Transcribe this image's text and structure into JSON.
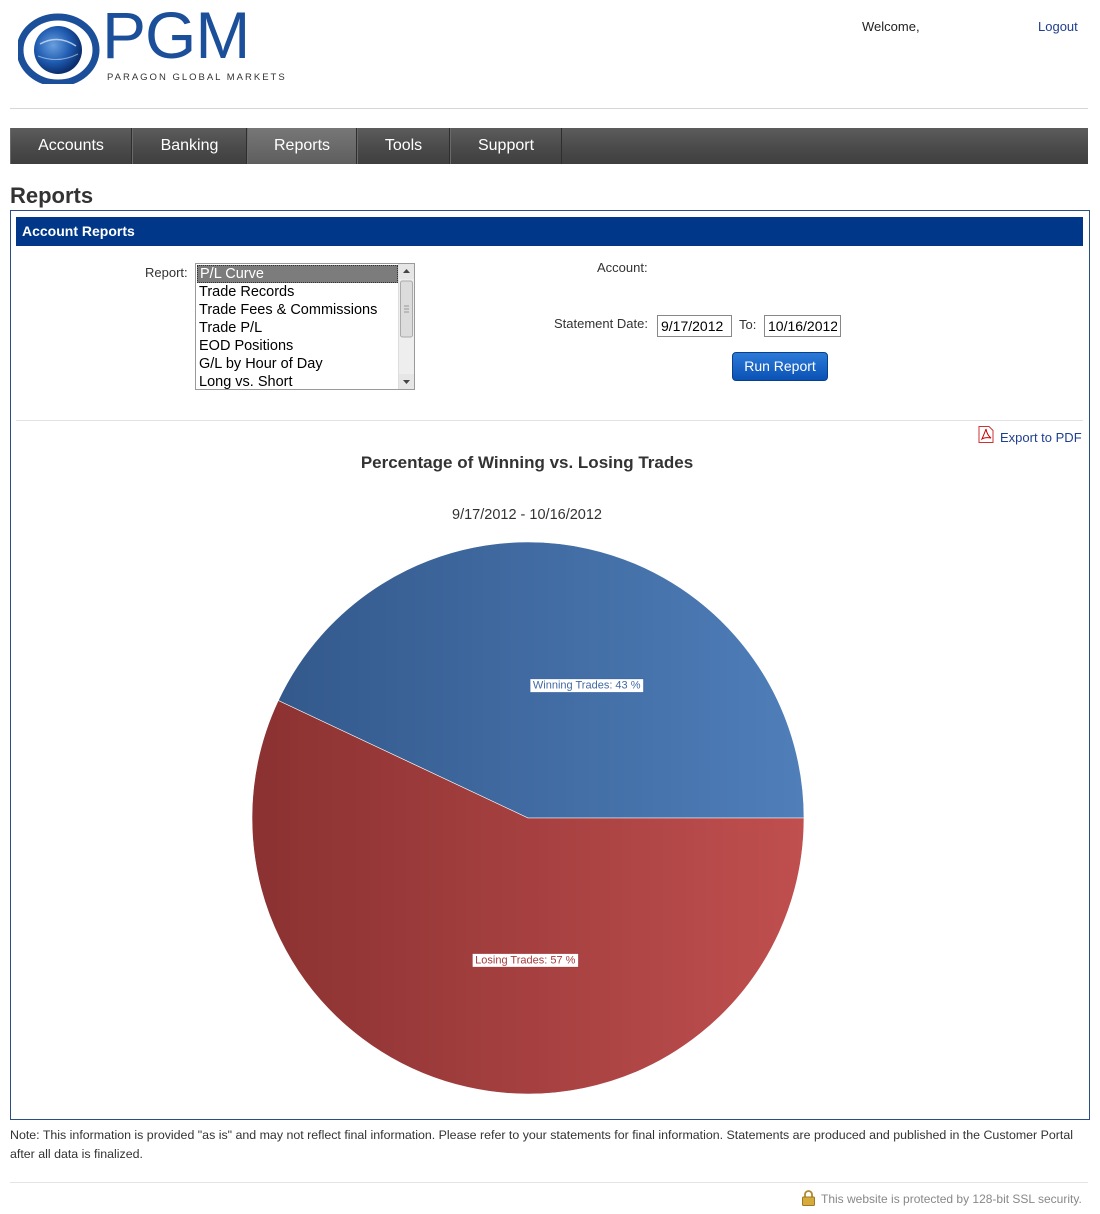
{
  "brand": {
    "name": "PGM",
    "tagline": "PARAGON GLOBAL MARKETS"
  },
  "header": {
    "welcome": "Welcome,",
    "logout": "Logout"
  },
  "nav": {
    "tabs": [
      {
        "label": "Accounts"
      },
      {
        "label": "Banking"
      },
      {
        "label": "Reports",
        "active": true
      },
      {
        "label": "Tools"
      },
      {
        "label": "Support"
      }
    ]
  },
  "page": {
    "title": "Reports",
    "panel_title": "Account Reports"
  },
  "form": {
    "report_label": "Report:",
    "report_options": [
      "P/L Curve",
      "Trade Records",
      "Trade Fees & Commissions",
      "Trade P/L",
      "EOD Positions",
      "G/L by Hour of Day",
      "Long vs. Short"
    ],
    "selected_report": "P/L Curve",
    "account_label": "Account:",
    "statement_date_label": "Statement Date:",
    "date_from": "9/17/2012",
    "to_label": "To:",
    "date_to": "10/16/2012",
    "run_button": "Run Report"
  },
  "export_label": "Export to PDF",
  "chart_data": {
    "type": "pie",
    "title": "Percentage of Winning vs. Losing Trades",
    "subtitle": "9/17/2012 - 10/16/2012",
    "series": [
      {
        "name": "Winning Trades",
        "value": 43,
        "color": "#4169a5",
        "label": "Winning Trades: 43 %"
      },
      {
        "name": "Losing Trades",
        "value": 57,
        "color": "#a63c3c",
        "label": "Losing Trades: 57 %"
      }
    ]
  },
  "footer": {
    "note": "Note: This information is provided \"as is\" and may not reflect final information. Please refer to your statements for final information. Statements are produced and published in the Customer Portal after all data is finalized.",
    "ssl": "This website is protected by 128-bit SSL security."
  },
  "colors": {
    "nav_bg": "#4a4a4a",
    "panel_header": "#003789",
    "link": "#1f3f8f",
    "button": "#0a52b5"
  }
}
